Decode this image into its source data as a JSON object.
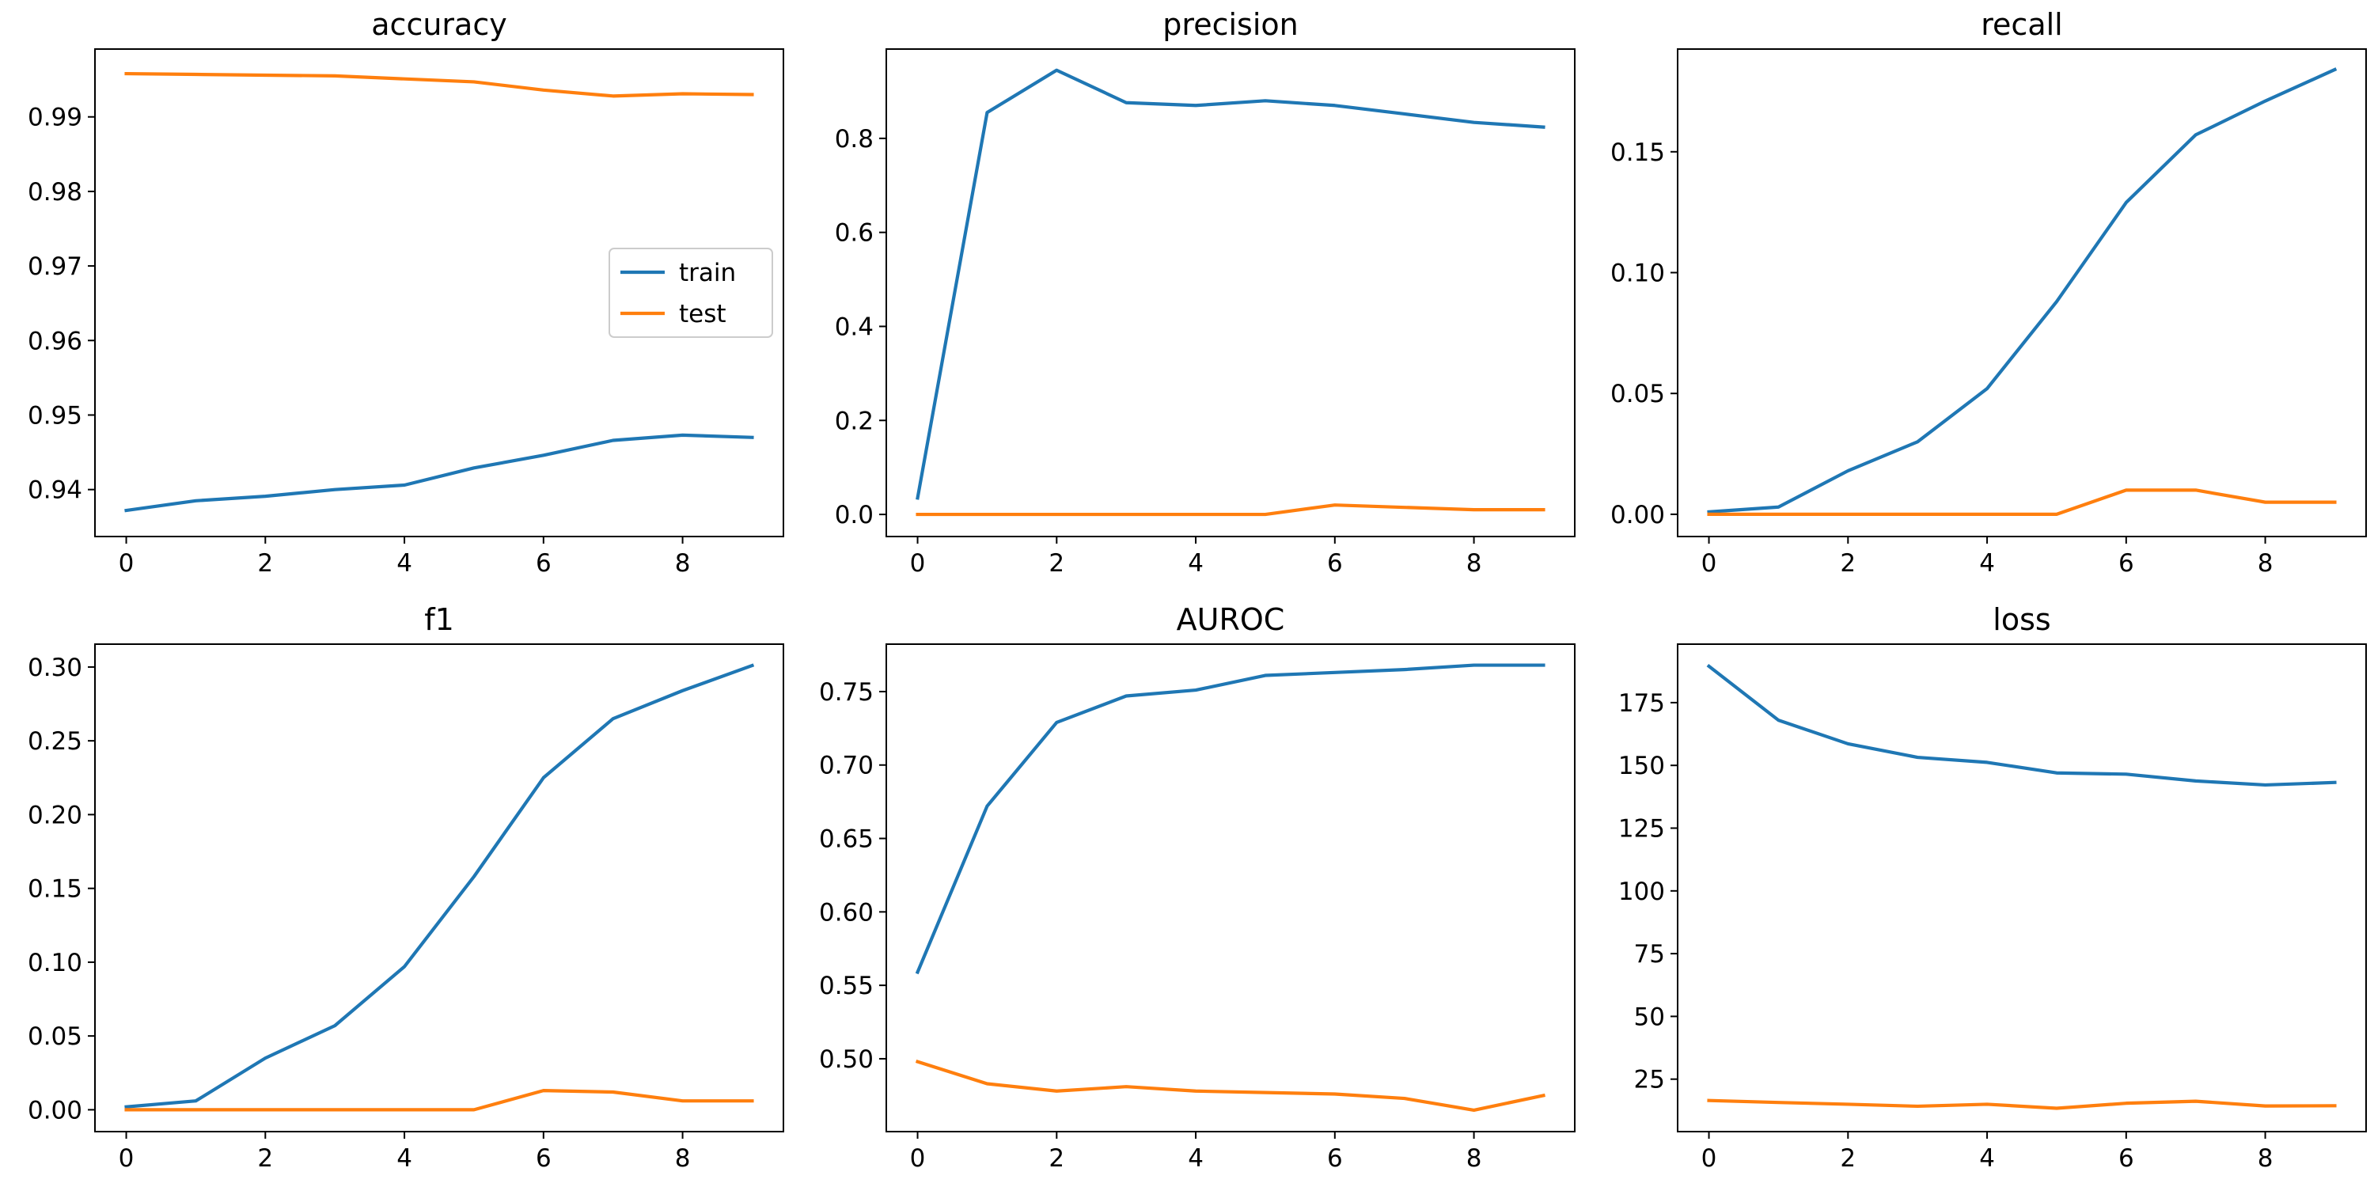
{
  "colors": {
    "train": "#1f77b4",
    "test": "#ff7f0e"
  },
  "chart_data": [
    {
      "type": "line",
      "title": "accuracy",
      "x": [
        0,
        1,
        2,
        3,
        4,
        5,
        6,
        7,
        8,
        9
      ],
      "xticks": [
        0,
        2,
        4,
        6,
        8
      ],
      "xlim": [
        -0.45,
        9.45
      ],
      "ylim": [
        0.9337,
        0.9991
      ],
      "yticks": [
        0.94,
        0.95,
        0.96,
        0.97,
        0.98,
        0.99
      ],
      "ytick_labels": [
        "0.94",
        "0.95",
        "0.96",
        "0.97",
        "0.98",
        "0.99"
      ],
      "legend": {
        "placement": "center-right",
        "entries": [
          "train",
          "test"
        ]
      },
      "series": [
        {
          "name": "train",
          "values": [
            0.9372,
            0.9385,
            0.9391,
            0.94,
            0.9406,
            0.9429,
            0.9446,
            0.9466,
            0.9473,
            0.947
          ]
        },
        {
          "name": "test",
          "values": [
            0.9958,
            0.9957,
            0.9956,
            0.9955,
            0.9951,
            0.9947,
            0.9936,
            0.9928,
            0.9931,
            0.993
          ]
        }
      ]
    },
    {
      "type": "line",
      "title": "precision",
      "x": [
        0,
        1,
        2,
        3,
        4,
        5,
        6,
        7,
        8,
        9
      ],
      "xticks": [
        0,
        2,
        4,
        6,
        8
      ],
      "xlim": [
        -0.45,
        9.45
      ],
      "ylim": [
        -0.047,
        0.99
      ],
      "yticks": [
        0,
        0.2,
        0.4,
        0.6,
        0.8
      ],
      "ytick_labels": [
        "0.0",
        "0.2",
        "0.4",
        "0.6",
        "0.8"
      ],
      "series": [
        {
          "name": "train",
          "values": [
            0.035,
            0.855,
            0.945,
            0.876,
            0.87,
            0.88,
            0.87,
            0.852,
            0.834,
            0.824
          ]
        },
        {
          "name": "test",
          "values": [
            0.0,
            0.0,
            0.0,
            0.0,
            0.0,
            0.0,
            0.02,
            0.015,
            0.01,
            0.01
          ]
        }
      ]
    },
    {
      "type": "line",
      "title": "recall",
      "x": [
        0,
        1,
        2,
        3,
        4,
        5,
        6,
        7,
        8,
        9
      ],
      "xticks": [
        0,
        2,
        4,
        6,
        8
      ],
      "xlim": [
        -0.45,
        9.45
      ],
      "ylim": [
        -0.0092,
        0.1925
      ],
      "yticks": [
        0,
        0.05,
        0.1,
        0.15
      ],
      "ytick_labels": [
        "0.00",
        "0.05",
        "0.10",
        "0.15"
      ],
      "series": [
        {
          "name": "train",
          "values": [
            0.001,
            0.003,
            0.018,
            0.03,
            0.052,
            0.088,
            0.129,
            0.157,
            0.171,
            0.184
          ]
        },
        {
          "name": "test",
          "values": [
            0.0,
            0.0,
            0.0,
            0.0,
            0.0,
            0.0,
            0.01,
            0.01,
            0.005,
            0.005
          ]
        }
      ]
    },
    {
      "type": "line",
      "title": "f1",
      "x": [
        0,
        1,
        2,
        3,
        4,
        5,
        6,
        7,
        8,
        9
      ],
      "xticks": [
        0,
        2,
        4,
        6,
        8
      ],
      "xlim": [
        -0.45,
        9.45
      ],
      "ylim": [
        -0.0148,
        0.3155
      ],
      "yticks": [
        0,
        0.05,
        0.1,
        0.15,
        0.2,
        0.25,
        0.3
      ],
      "ytick_labels": [
        "0.00",
        "0.05",
        "0.10",
        "0.15",
        "0.20",
        "0.25",
        "0.30"
      ],
      "series": [
        {
          "name": "train",
          "values": [
            0.002,
            0.006,
            0.035,
            0.057,
            0.097,
            0.158,
            0.225,
            0.265,
            0.284,
            0.301
          ]
        },
        {
          "name": "test",
          "values": [
            0.0,
            0.0,
            0.0,
            0.0,
            0.0,
            0.0,
            0.013,
            0.012,
            0.006,
            0.006
          ]
        }
      ]
    },
    {
      "type": "line",
      "title": "AUROC",
      "x": [
        0,
        1,
        2,
        3,
        4,
        5,
        6,
        7,
        8,
        9
      ],
      "xticks": [
        0,
        2,
        4,
        6,
        8
      ],
      "xlim": [
        -0.45,
        9.45
      ],
      "ylim": [
        0.4504,
        0.7823
      ],
      "yticks": [
        0.5,
        0.55,
        0.6,
        0.65,
        0.7,
        0.75
      ],
      "ytick_labels": [
        "0.50",
        "0.55",
        "0.60",
        "0.65",
        "0.70",
        "0.75"
      ],
      "series": [
        {
          "name": "train",
          "values": [
            0.559,
            0.672,
            0.729,
            0.747,
            0.751,
            0.761,
            0.763,
            0.765,
            0.768,
            0.768
          ]
        },
        {
          "name": "test",
          "values": [
            0.498,
            0.483,
            0.478,
            0.481,
            0.478,
            0.477,
            0.476,
            0.473,
            0.465,
            0.475
          ]
        }
      ]
    },
    {
      "type": "line",
      "title": "loss",
      "x": [
        0,
        1,
        2,
        3,
        4,
        5,
        6,
        7,
        8,
        9
      ],
      "xticks": [
        0,
        2,
        4,
        6,
        8
      ],
      "xlim": [
        -0.45,
        9.45
      ],
      "ylim": [
        4.1,
        198.3
      ],
      "yticks": [
        25,
        50,
        75,
        100,
        125,
        150,
        175
      ],
      "ytick_labels": [
        "25",
        "50",
        "75",
        "100",
        "125",
        "150",
        "175"
      ],
      "series": [
        {
          "name": "train",
          "values": [
            189.5,
            168.0,
            158.6,
            153.2,
            151.2,
            147.0,
            146.5,
            143.8,
            142.2,
            143.2
          ]
        },
        {
          "name": "test",
          "values": [
            16.5,
            15.7,
            15.0,
            14.2,
            15.0,
            13.4,
            15.4,
            16.2,
            14.3,
            14.4
          ]
        }
      ]
    }
  ]
}
